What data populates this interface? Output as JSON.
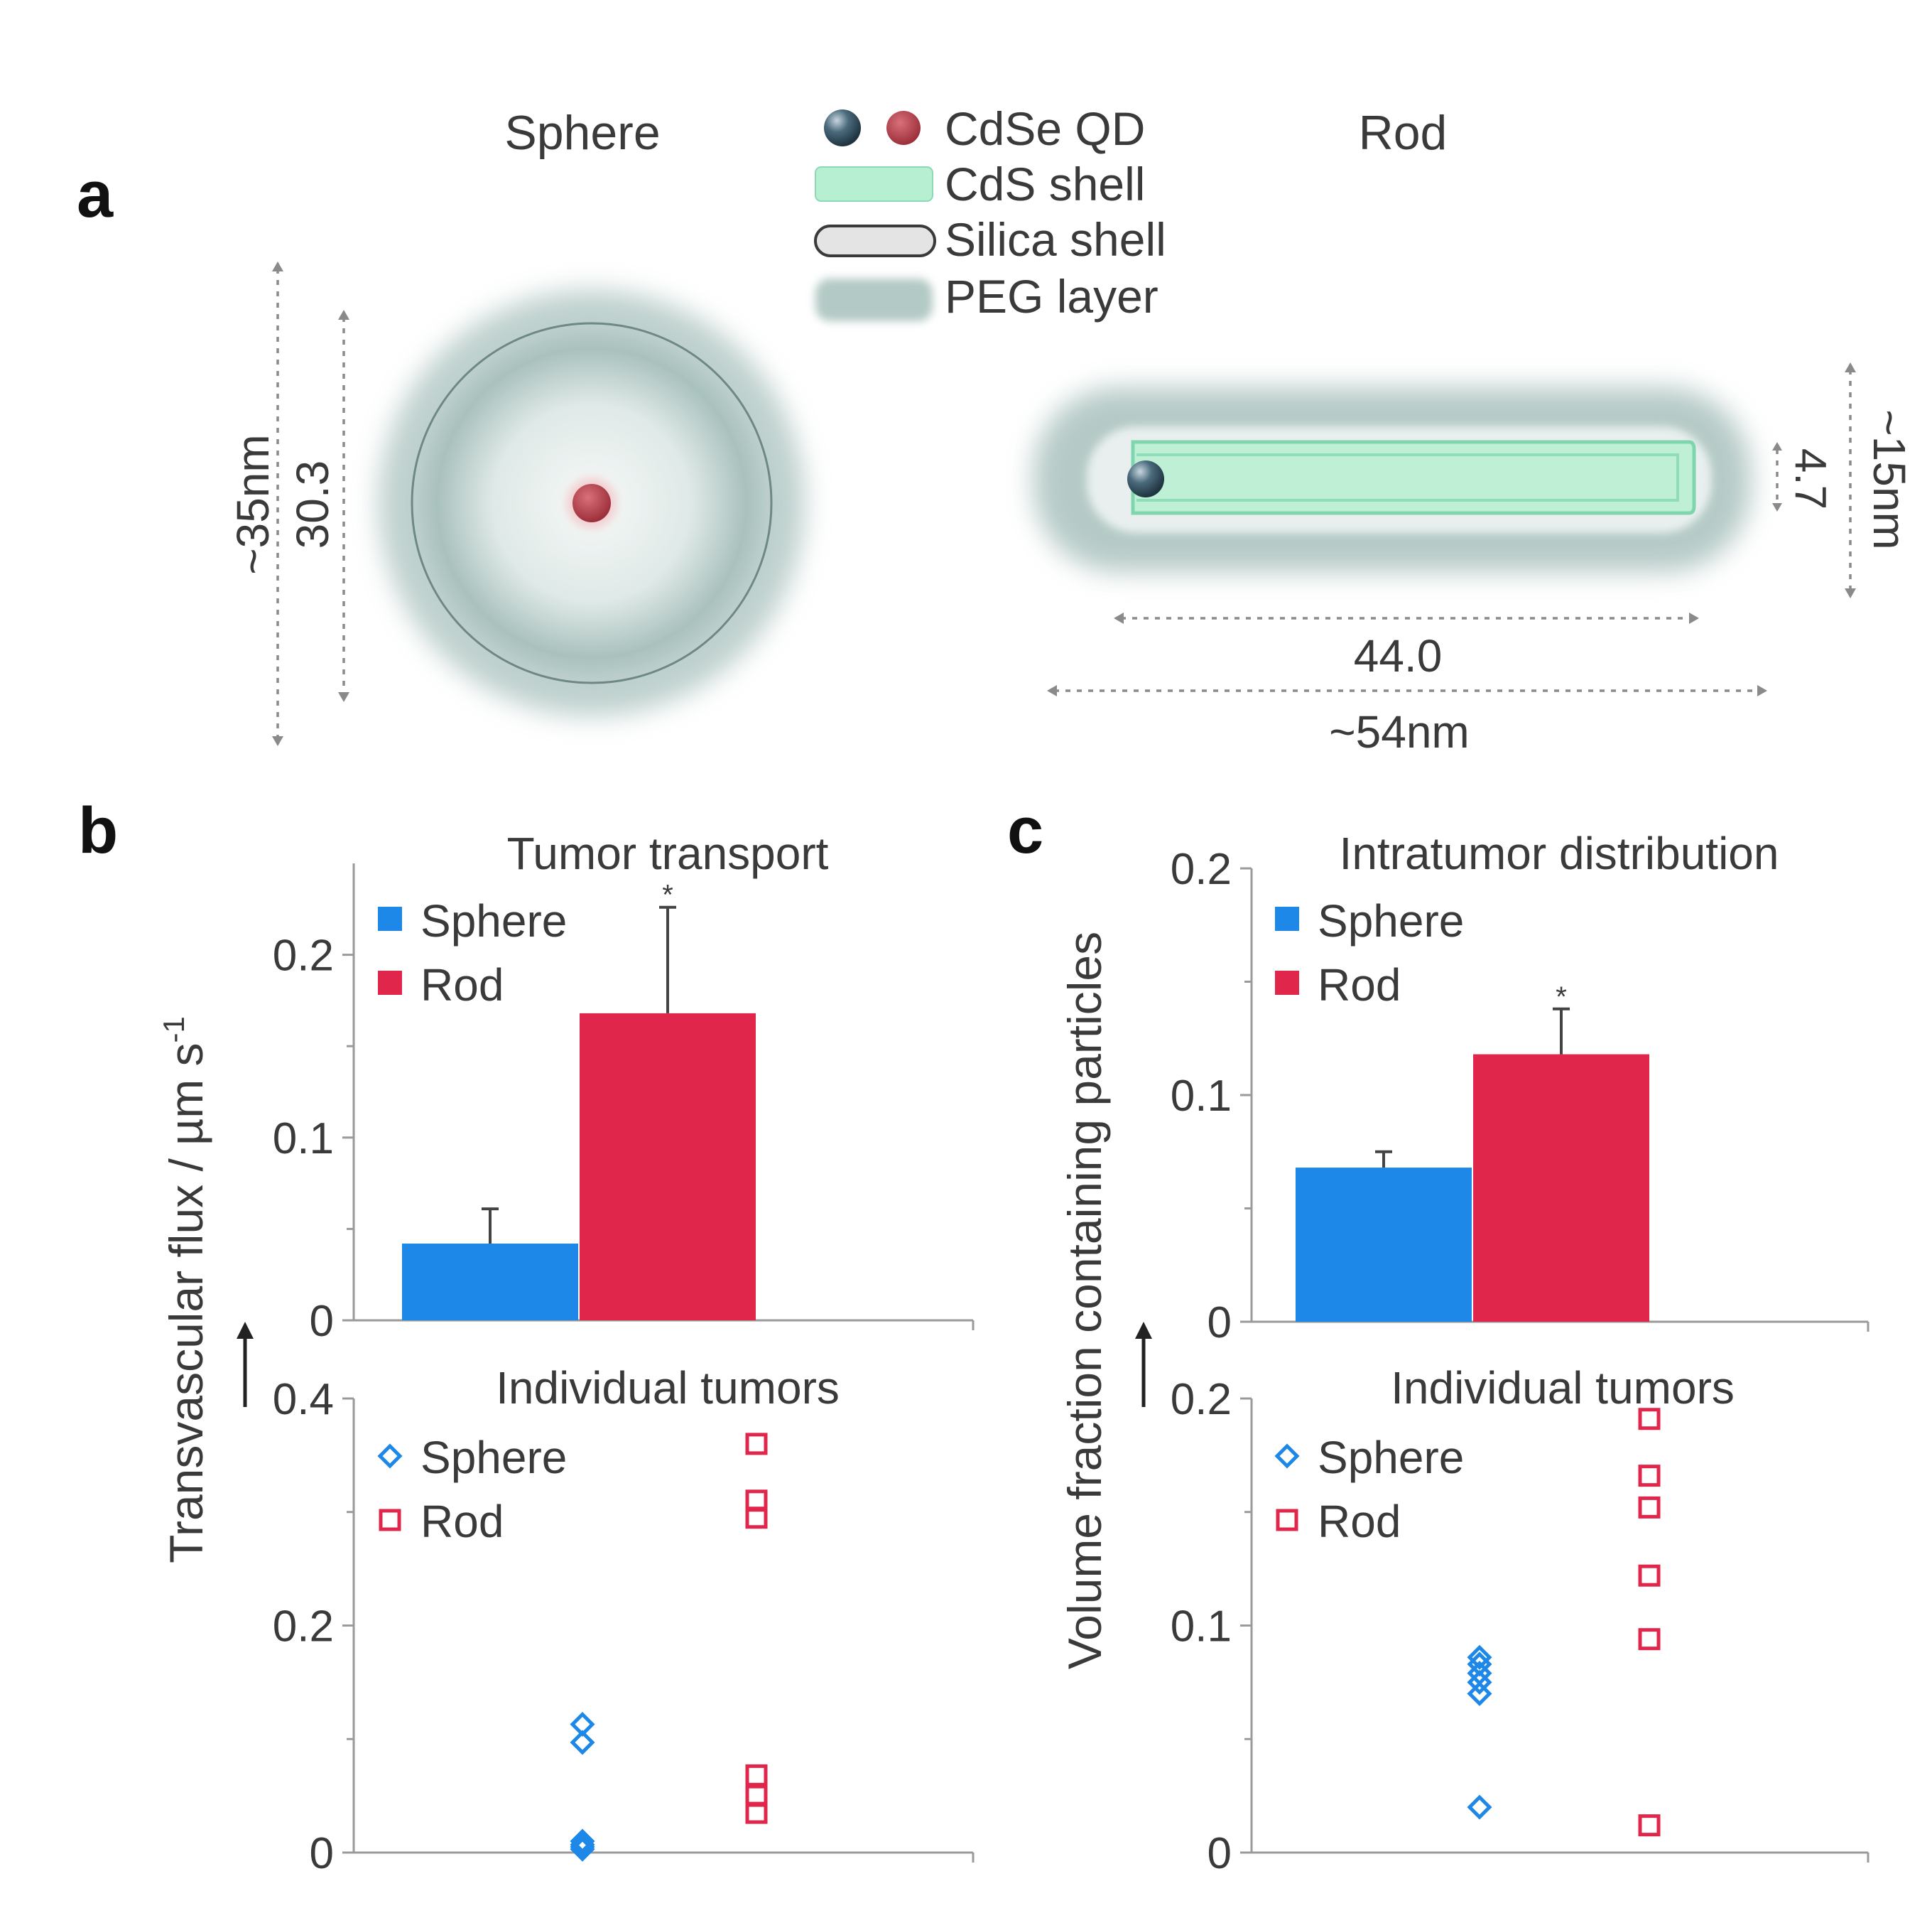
{
  "colors": {
    "sphere": "#1e88e8",
    "rod": "#e0264a",
    "core_dark": "#2f4a5a",
    "core_red": "#b0404a",
    "cds_shell": "#9ee6c4",
    "silica_shell": "#d8d8d8",
    "peg_layer": "#a9c1bd"
  },
  "panel_a": {
    "letter": "a",
    "sphere_title": "Sphere",
    "rod_title": "Rod",
    "legend": [
      {
        "label": "CdSe QD",
        "icon": "quantum-dot-icon"
      },
      {
        "label": "CdS shell",
        "icon": "cds-shell-swatch"
      },
      {
        "label": "Silica shell",
        "icon": "silica-shell-swatch"
      },
      {
        "label": "PEG layer",
        "icon": "peg-layer-swatch"
      }
    ],
    "sphere_dims": {
      "outer": "~35nm",
      "inner": "30.3"
    },
    "rod_dims": {
      "length_inner": "44.0",
      "length_outer": "~54nm",
      "width_inner": "4.7",
      "width_outer": "~15nm"
    }
  },
  "chart_data": [
    {
      "panel": "b",
      "type": "bar",
      "title": "Tumor transport",
      "ylabel": "Transvascular flux / µm s",
      "ylabel_sup": "-1",
      "categories": [
        "Sphere",
        "Rod"
      ],
      "values": [
        0.042,
        0.168
      ],
      "errors": [
        0.019,
        0.058
      ],
      "significance": [
        "",
        "*"
      ],
      "ylim": [
        0,
        0.25
      ],
      "yticks": [
        0,
        0.1,
        0.2
      ],
      "ytick_labels": [
        "0",
        "0.1",
        "0.2"
      ],
      "legend": [
        "Sphere",
        "Rod"
      ]
    },
    {
      "panel": "c",
      "type": "bar",
      "title": "Intratumor distribution",
      "ylabel": "Volume fraction containing particles",
      "categories": [
        "Sphere",
        "Rod"
      ],
      "values": [
        0.068,
        0.118
      ],
      "errors": [
        0.007,
        0.02
      ],
      "significance": [
        "",
        "*"
      ],
      "ylim": [
        0,
        0.2
      ],
      "yticks": [
        0,
        0.1,
        0.2
      ],
      "ytick_labels": [
        "0",
        "0.1",
        "0.2"
      ],
      "legend": [
        "Sphere",
        "Rod"
      ]
    },
    {
      "panel": "b",
      "type": "scatter",
      "title": "Individual tumors",
      "series": [
        {
          "name": "Sphere",
          "marker": "diamond",
          "values": [
            0.113,
            0.097,
            0.01,
            0.007,
            0.005,
            0.003
          ]
        },
        {
          "name": "Rod",
          "marker": "square",
          "values": [
            0.36,
            0.31,
            0.295,
            0.068,
            0.05,
            0.035
          ]
        }
      ],
      "ylim": [
        0,
        0.4
      ],
      "yticks": [
        0,
        0.2,
        0.4
      ],
      "ytick_labels": [
        "0",
        "0.2",
        "0.4"
      ],
      "legend": [
        "Sphere",
        "Rod"
      ]
    },
    {
      "panel": "c",
      "type": "scatter",
      "title": "Individual tumors",
      "series": [
        {
          "name": "Sphere",
          "marker": "diamond",
          "values": [
            0.086,
            0.083,
            0.079,
            0.075,
            0.07,
            0.02
          ]
        },
        {
          "name": "Rod",
          "marker": "square",
          "values": [
            0.191,
            0.166,
            0.152,
            0.122,
            0.094,
            0.012
          ]
        }
      ],
      "ylim": [
        0,
        0.2
      ],
      "yticks": [
        0,
        0.1,
        0.2
      ],
      "ytick_labels": [
        "0",
        "0.1",
        "0.2"
      ],
      "legend": [
        "Sphere",
        "Rod"
      ]
    }
  ]
}
